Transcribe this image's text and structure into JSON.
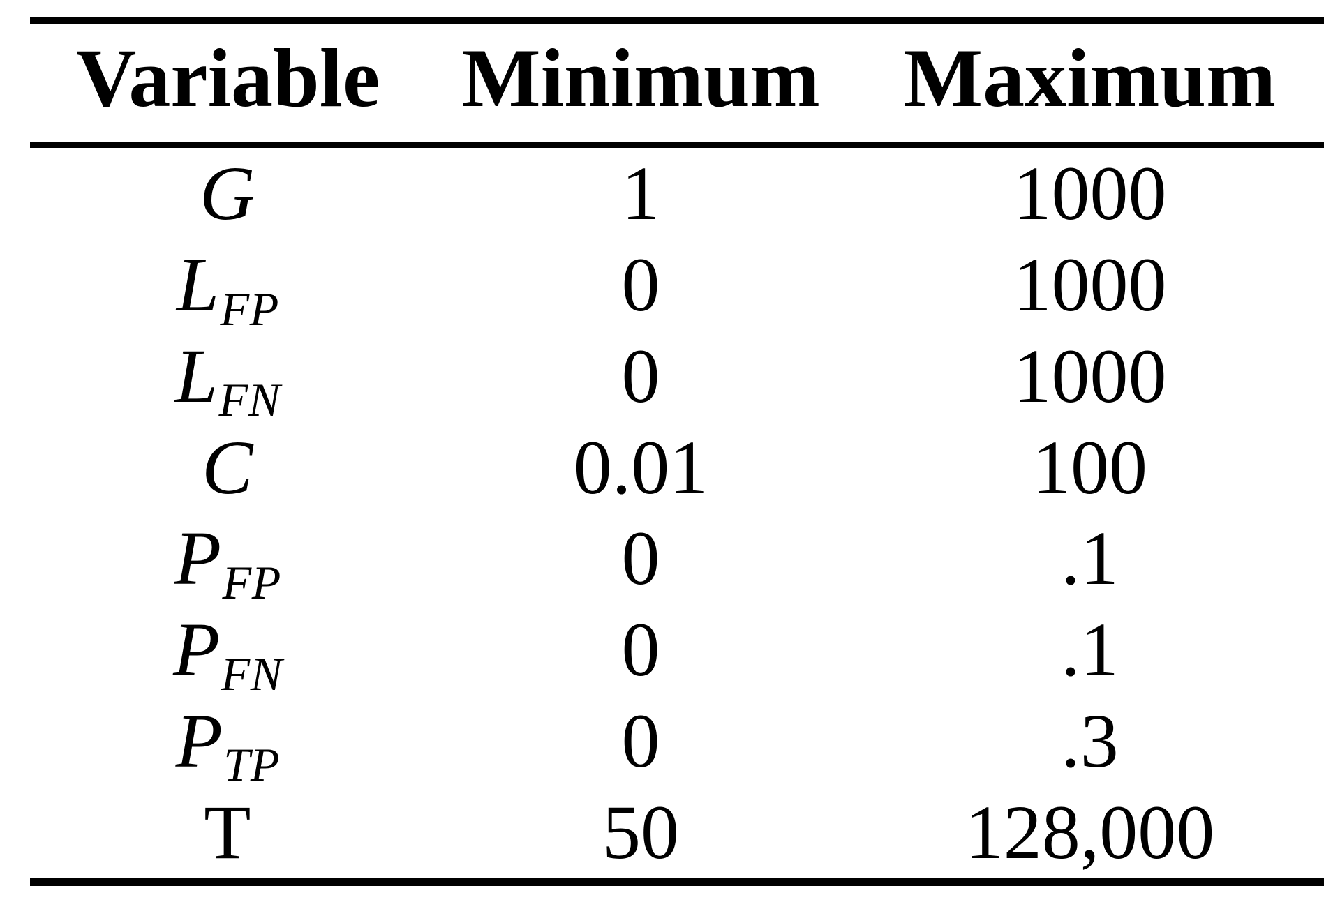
{
  "table": {
    "headers": [
      "Variable",
      "Minimum",
      "Maximum"
    ],
    "rows": [
      {
        "base": "G",
        "sub": "",
        "style": "italic",
        "min": "1",
        "max": "1000"
      },
      {
        "base": "L",
        "sub": "FP",
        "style": "italic",
        "min": "0",
        "max": "1000"
      },
      {
        "base": "L",
        "sub": "FN",
        "style": "italic",
        "min": "0",
        "max": "1000"
      },
      {
        "base": "C",
        "sub": "",
        "style": "italic",
        "min": "0.01",
        "max": "100"
      },
      {
        "base": "P",
        "sub": "FP",
        "style": "italic",
        "min": "0",
        "max": ".1"
      },
      {
        "base": "P",
        "sub": "FN",
        "style": "italic",
        "min": "0",
        "max": ".1"
      },
      {
        "base": "P",
        "sub": "TP",
        "style": "italic",
        "min": "0",
        "max": ".3"
      },
      {
        "base": "T",
        "sub": "",
        "style": "upright",
        "min": "50",
        "max": "128,000"
      }
    ]
  },
  "colors": {
    "background": "#ffffff",
    "text": "#000000",
    "rule": "#000000"
  }
}
